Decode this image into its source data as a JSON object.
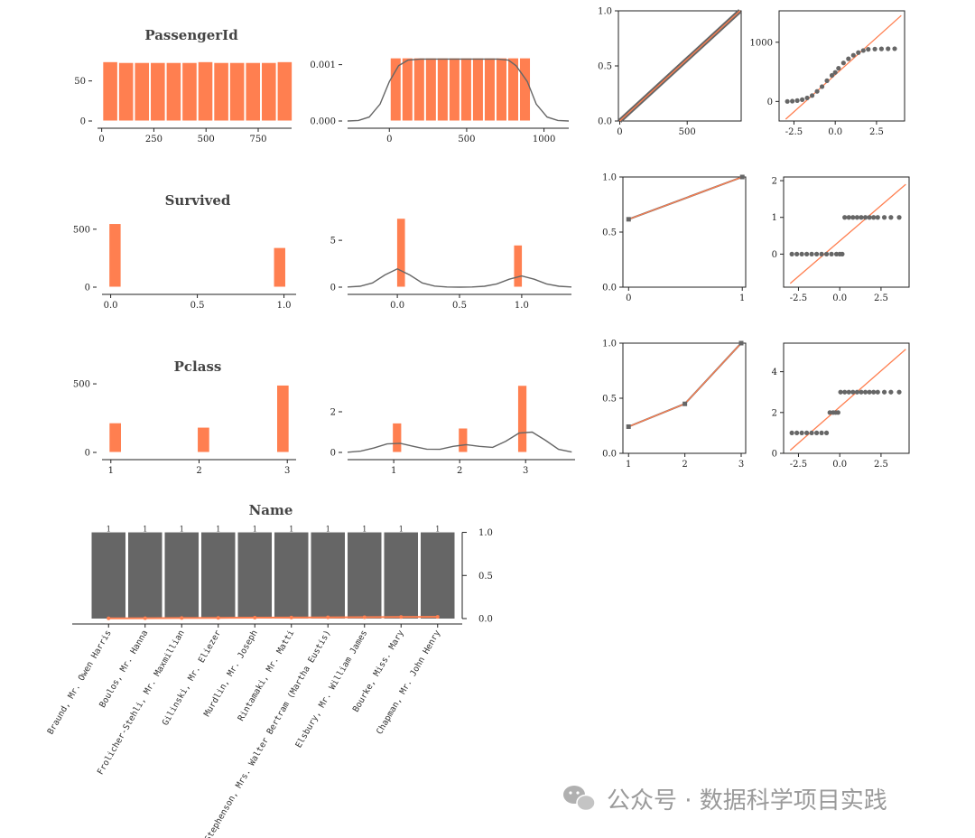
{
  "colors": {
    "orange": "#ff7f50",
    "gray": "#666666",
    "axis": "#222222",
    "watermark": "#9a9a9a",
    "bar_edge": "#ffffff"
  },
  "chart_data": [
    {
      "id": "passengerid_hist",
      "type": "bar",
      "title": "PassengerId",
      "x": [
        41,
        117,
        193,
        269,
        345,
        421,
        497,
        573,
        649,
        725,
        801,
        877
      ],
      "values": [
        74,
        73,
        73,
        73,
        73,
        73,
        74,
        73,
        73,
        73,
        73,
        74
      ],
      "xlim": [
        -20,
        910
      ],
      "ylim": [
        0,
        80
      ],
      "xticks": [
        0,
        250,
        500,
        750
      ],
      "yticks": [
        0,
        50
      ],
      "xticklabels": [
        "0",
        "250",
        "500",
        "750"
      ],
      "yticklabels": [
        "0",
        "50"
      ]
    },
    {
      "id": "passengerid_dist",
      "type": "bar",
      "x": [
        41,
        117,
        193,
        269,
        345,
        421,
        497,
        573,
        649,
        725,
        801,
        877
      ],
      "values": [
        0.00112,
        0.00112,
        0.00112,
        0.00112,
        0.00112,
        0.00112,
        0.00112,
        0.00112,
        0.00112,
        0.00112,
        0.00112,
        0.00112
      ],
      "kde": {
        "x": [
          -270,
          -200,
          -130,
          -60,
          0,
          60,
          120,
          200,
          300,
          400,
          446,
          500,
          600,
          700,
          770,
          820,
          892,
          950,
          1020,
          1090,
          1160
        ],
        "y": [
          0,
          1e-05,
          7e-05,
          0.0003,
          0.0007,
          0.00098,
          0.00108,
          0.0011,
          0.0011,
          0.0011,
          0.0011,
          0.0011,
          0.0011,
          0.0011,
          0.00108,
          0.00098,
          0.0007,
          0.0003,
          7e-05,
          1e-05,
          0
        ]
      },
      "xlim": [
        -270,
        1160
      ],
      "ylim": [
        0,
        0.00125
      ],
      "xticks": [
        0,
        500,
        1000
      ],
      "yticks": [
        0,
        0.001
      ],
      "xticklabels": [
        "0",
        "500",
        "1000"
      ],
      "yticklabels": [
        "0.000",
        "0.001"
      ]
    },
    {
      "id": "passengerid_pp",
      "type": "line",
      "x": [
        0,
        891
      ],
      "y": [
        0,
        1
      ],
      "ref": {
        "x": [
          0,
          891
        ],
        "y": [
          0,
          1
        ]
      },
      "xlim": [
        -10,
        900
      ],
      "ylim": [
        0,
        1
      ],
      "xticks": [
        0,
        500
      ],
      "yticks": [
        0,
        0.5,
        1
      ],
      "xticklabels": [
        "0",
        "500"
      ],
      "yticklabels": [
        "0.0",
        "0.5",
        "1.0"
      ]
    },
    {
      "id": "passengerid_qq",
      "type": "scatter",
      "points": {
        "x": [
          -2.9,
          -2.6,
          -2.3,
          -2.0,
          -1.7,
          -1.4,
          -1.1,
          -0.8,
          -0.5,
          -0.2,
          0.0,
          0.2,
          0.5,
          0.8,
          1.1,
          1.4,
          1.7,
          2.0,
          2.4,
          2.8,
          3.2,
          3.6
        ],
        "y": [
          1,
          5,
          15,
          30,
          60,
          100,
          170,
          250,
          350,
          440,
          490,
          560,
          650,
          720,
          780,
          825,
          860,
          880,
          885,
          888,
          890,
          891
        ]
      },
      "ref": {
        "x": [
          -3,
          4
        ],
        "y": [
          -300,
          1450
        ]
      },
      "xlim": [
        -3.4,
        4.2
      ],
      "ylim": [
        -330,
        1530
      ],
      "xticks": [
        -2.5,
        0,
        2.5
      ],
      "yticks": [
        0,
        1000
      ],
      "xticklabels": [
        "-2.5",
        "0.0",
        "2.5"
      ],
      "yticklabels": [
        "0",
        "1000"
      ]
    },
    {
      "id": "survived_hist",
      "type": "bar",
      "title": "Survived",
      "x": [
        0.025,
        0.975
      ],
      "values": [
        549,
        342
      ],
      "width": 0.07,
      "xlim": [
        -0.05,
        1.07
      ],
      "ylim": [
        0,
        600
      ],
      "xticks": [
        0,
        0.5,
        1
      ],
      "yticks": [
        0,
        500
      ],
      "xticklabels": [
        "0.0",
        "0.5",
        "1.0"
      ],
      "yticklabels": [
        "0",
        "500"
      ]
    },
    {
      "id": "survived_dist",
      "type": "bar",
      "x": [
        0.03,
        0.97
      ],
      "values": [
        7.35,
        4.5
      ],
      "width": 0.07,
      "kde": {
        "x": [
          -0.4,
          -0.3,
          -0.2,
          -0.1,
          0,
          0.1,
          0.2,
          0.3,
          0.4,
          0.5,
          0.6,
          0.7,
          0.8,
          0.9,
          1,
          1.1,
          1.2,
          1.3,
          1.4
        ],
        "y": [
          0.02,
          0.1,
          0.45,
          1.3,
          1.95,
          1.3,
          0.45,
          0.12,
          0.02,
          0,
          0.02,
          0.1,
          0.35,
          0.85,
          1.2,
          0.85,
          0.35,
          0.1,
          0.02
        ]
      },
      "xlim": [
        -0.4,
        1.4
      ],
      "ylim": [
        0,
        8
      ],
      "xticks": [
        0,
        0.5,
        1
      ],
      "yticks": [
        0,
        5
      ],
      "xticklabels": [
        "0.0",
        "0.5",
        "1.0"
      ],
      "yticklabels": [
        "0",
        "5"
      ]
    },
    {
      "id": "survived_pp",
      "type": "line",
      "x": [
        0,
        1
      ],
      "y": [
        0.616,
        1.0
      ],
      "ref": {
        "x": [
          0,
          1
        ],
        "y": [
          0.616,
          1.0
        ]
      },
      "xlim": [
        -0.05,
        1.03
      ],
      "ylim": [
        0,
        1
      ],
      "xticks": [
        0,
        1
      ],
      "yticks": [
        0,
        0.5,
        1
      ],
      "xticklabels": [
        "0",
        "1"
      ],
      "yticklabels": [
        "0.0",
        "0.5",
        "1.0"
      ]
    },
    {
      "id": "survived_qq",
      "type": "scatter",
      "points": {
        "x": [
          -2.9,
          -2.6,
          -2.3,
          -2.0,
          -1.7,
          -1.4,
          -1.1,
          -0.8,
          -0.5,
          -0.2,
          0.0,
          0.15,
          0.3,
          0.55,
          0.8,
          1.05,
          1.3,
          1.55,
          1.8,
          2.05,
          2.3,
          2.7,
          3.1,
          3.6
        ],
        "y": [
          0,
          0,
          0,
          0,
          0,
          0,
          0,
          0,
          0,
          0,
          0,
          0,
          1,
          1,
          1,
          1,
          1,
          1,
          1,
          1,
          1,
          1,
          1,
          1
        ]
      },
      "ref": {
        "x": [
          -3,
          4
        ],
        "y": [
          -0.8,
          1.9
        ]
      },
      "xlim": [
        -3.4,
        4.2
      ],
      "ylim": [
        -0.9,
        2.1
      ],
      "xticks": [
        -2.5,
        0,
        2.5
      ],
      "yticks": [
        0,
        1,
        2
      ],
      "xticklabels": [
        "-2.5",
        "0.0",
        "2.5"
      ],
      "yticklabels": [
        "0",
        "1",
        "2"
      ]
    },
    {
      "id": "pclass_hist",
      "type": "bar",
      "title": "Pclass",
      "x": [
        1.05,
        2.05,
        2.95
      ],
      "values": [
        216,
        184,
        491
      ],
      "width": 0.14,
      "xlim": [
        0.9,
        3.1
      ],
      "ylim": [
        0,
        540
      ],
      "xticks": [
        1,
        2,
        3
      ],
      "yticks": [
        0,
        500
      ],
      "xticklabels": [
        "1",
        "2",
        "3"
      ],
      "yticklabels": [
        "0",
        "500"
      ]
    },
    {
      "id": "pclass_dist",
      "type": "bar",
      "x": [
        1.05,
        2.05,
        2.95
      ],
      "values": [
        1.45,
        1.2,
        3.3
      ],
      "width": 0.14,
      "kde": {
        "x": [
          0.3,
          0.5,
          0.7,
          0.9,
          1.1,
          1.3,
          1.5,
          1.7,
          1.9,
          2.1,
          2.3,
          2.5,
          2.7,
          2.9,
          3.1,
          3.3,
          3.5,
          3.7
        ],
        "y": [
          0.01,
          0.06,
          0.22,
          0.42,
          0.45,
          0.3,
          0.16,
          0.15,
          0.3,
          0.38,
          0.3,
          0.25,
          0.55,
          0.95,
          1.0,
          0.6,
          0.15,
          0.02
        ]
      },
      "xlim": [
        0.3,
        3.75
      ],
      "ylim": [
        0,
        3.6
      ],
      "xticks": [
        1,
        2,
        3
      ],
      "yticks": [
        0,
        2
      ],
      "xticklabels": [
        "1",
        "2",
        "3"
      ],
      "yticklabels": [
        "0",
        "2"
      ]
    },
    {
      "id": "pclass_pp",
      "type": "line",
      "x": [
        1,
        2,
        3
      ],
      "y": [
        0.242,
        0.449,
        1.0
      ],
      "ref": {
        "x": [
          1,
          2,
          3
        ],
        "y": [
          0.242,
          0.449,
          1.0
        ]
      },
      "xlim": [
        0.9,
        3.08
      ],
      "ylim": [
        0,
        1
      ],
      "xticks": [
        1,
        2,
        3
      ],
      "yticks": [
        0,
        0.5,
        1
      ],
      "xticklabels": [
        "1",
        "2",
        "3"
      ],
      "yticklabels": [
        "0.0",
        "0.5",
        "1.0"
      ]
    },
    {
      "id": "pclass_qq",
      "type": "scatter",
      "points": {
        "x": [
          -2.9,
          -2.6,
          -2.3,
          -2.0,
          -1.7,
          -1.4,
          -1.1,
          -0.8,
          -0.6,
          -0.4,
          -0.25,
          -0.1,
          0.05,
          0.3,
          0.55,
          0.8,
          1.05,
          1.3,
          1.55,
          1.8,
          2.05,
          2.3,
          2.7,
          3.1,
          3.6
        ],
        "y": [
          1,
          1,
          1,
          1,
          1,
          1,
          1,
          1,
          2,
          2,
          2,
          2,
          3,
          3,
          3,
          3,
          3,
          3,
          3,
          3,
          3,
          3,
          3,
          3,
          3
        ]
      },
      "ref": {
        "x": [
          -3,
          4
        ],
        "y": [
          0.15,
          5.1
        ]
      },
      "xlim": [
        -3.4,
        4.2
      ],
      "ylim": [
        0,
        5.4
      ],
      "xticks": [
        -2.5,
        0,
        2.5
      ],
      "yticks": [
        0,
        2,
        4
      ],
      "xticklabels": [
        "-2.5",
        "0.0",
        "2.5"
      ],
      "yticklabels": [
        "0",
        "2",
        "4"
      ]
    },
    {
      "id": "name_bar",
      "type": "bar",
      "title": "Name",
      "categories": [
        "Braund, Mr. Owen Harris",
        "Boulos, Mr. Hanna",
        "Frolicher-Stehli, Mr. Maxmillian",
        "Gilinski, Mr. Eliezer",
        "Murdlin, Mr. Joseph",
        "Rintamaki, Mr. Matti",
        "Stephenson, Mrs. Walter Bertram (Martha Eustis)",
        "Elsbury, Mr. William James",
        "Bourke, Miss. Mary",
        "Chapman, Mr. John Henry"
      ],
      "values": [
        1,
        1,
        1,
        1,
        1,
        1,
        1,
        1,
        1,
        1
      ],
      "value_labels": [
        "1",
        "1",
        "1",
        "1",
        "1",
        "1",
        "1",
        "1",
        "1",
        "1"
      ],
      "line": [
        0.002,
        0.004,
        0.006,
        0.008,
        0.01,
        0.012,
        0.014,
        0.016,
        0.018,
        0.02
      ],
      "ylim": [
        0,
        1.1
      ],
      "yticks": [
        0,
        0.5,
        1
      ],
      "yticklabels": [
        "0.0",
        "0.5",
        "1.0"
      ]
    }
  ],
  "watermark": {
    "text": "公众号 · 数据科学项目实践",
    "icon": "wechat-icon"
  }
}
